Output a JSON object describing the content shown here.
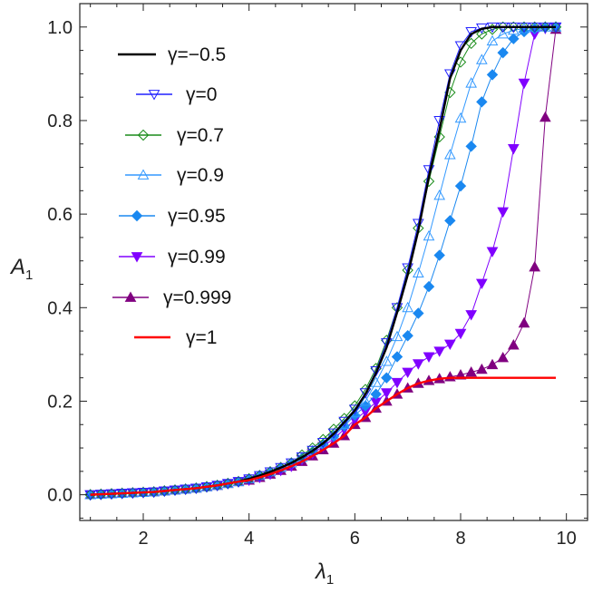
{
  "chart_data": {
    "type": "line",
    "xlabel": "λ",
    "xlabel_sub": "1",
    "ylabel": "A",
    "ylabel_sub": "1",
    "xlim": [
      0.8,
      10.4
    ],
    "ylim": [
      -0.055,
      1.05
    ],
    "xticks": [
      2,
      4,
      6,
      8,
      10
    ],
    "xtick_labels": [
      "2",
      "4",
      "6",
      "8",
      "10"
    ],
    "yticks": [
      0.0,
      0.2,
      0.4,
      0.6,
      0.8,
      1.0
    ],
    "ytick_labels": [
      "0.0",
      "0.2",
      "0.4",
      "0.6",
      "0.8",
      "1.0"
    ],
    "grid": false,
    "legend_placement": "top-left",
    "x": [
      1.0,
      1.2,
      1.4,
      1.6,
      1.8,
      2.0,
      2.2,
      2.4,
      2.6,
      2.8,
      3.0,
      3.2,
      3.4,
      3.6,
      3.8,
      4.0,
      4.2,
      4.4,
      4.6,
      4.8,
      5.0,
      5.2,
      5.4,
      5.6,
      5.8,
      6.0,
      6.2,
      6.4,
      6.6,
      6.8,
      7.0,
      7.2,
      7.4,
      7.6,
      7.8,
      8.0,
      8.2,
      8.4,
      8.6,
      8.8,
      9.0,
      9.2,
      9.4,
      9.6,
      9.8
    ],
    "series": [
      {
        "name": "γ=−0.5",
        "color": "#000000",
        "marker": "none",
        "values": [
          0,
          0.001,
          0.002,
          0.003,
          0.004,
          0.005,
          0.006,
          0.008,
          0.01,
          0.012,
          0.014,
          0.017,
          0.02,
          0.024,
          0.028,
          0.034,
          0.041,
          0.049,
          0.058,
          0.068,
          0.08,
          0.094,
          0.11,
          0.13,
          0.155,
          0.18,
          0.215,
          0.26,
          0.315,
          0.39,
          0.47,
          0.565,
          0.68,
          0.78,
          0.89,
          0.95,
          0.985,
          0.996,
          1,
          1,
          1,
          1,
          1,
          1,
          1
        ]
      },
      {
        "name": "γ=0",
        "color": "#2020ff",
        "marker": "triangle-down-open",
        "values": [
          0,
          0.001,
          0.002,
          0.003,
          0.004,
          0.005,
          0.006,
          0.008,
          0.01,
          0.012,
          0.014,
          0.017,
          0.02,
          0.024,
          0.028,
          0.034,
          0.041,
          0.049,
          0.058,
          0.068,
          0.081,
          0.095,
          0.112,
          0.132,
          0.157,
          0.183,
          0.218,
          0.265,
          0.325,
          0.4,
          0.485,
          0.58,
          0.695,
          0.8,
          0.9,
          0.96,
          0.99,
          0.998,
          1,
          1,
          1,
          1,
          1,
          1,
          1
        ]
      },
      {
        "name": "γ=0.7",
        "color": "#1a8c1a",
        "marker": "diamond-open",
        "values": [
          0,
          0.001,
          0.002,
          0.003,
          0.004,
          0.005,
          0.006,
          0.008,
          0.01,
          0.012,
          0.014,
          0.017,
          0.02,
          0.024,
          0.028,
          0.034,
          0.041,
          0.049,
          0.058,
          0.068,
          0.085,
          0.1,
          0.118,
          0.14,
          0.163,
          0.19,
          0.225,
          0.27,
          0.33,
          0.4,
          0.48,
          0.57,
          0.67,
          0.765,
          0.86,
          0.925,
          0.965,
          0.985,
          0.995,
          1,
          1,
          1,
          1,
          1,
          1
        ]
      },
      {
        "name": "γ=0.9",
        "color": "#3399ff",
        "marker": "triangle-up-open",
        "values": [
          0,
          0.001,
          0.002,
          0.003,
          0.004,
          0.005,
          0.006,
          0.008,
          0.01,
          0.012,
          0.014,
          0.017,
          0.02,
          0.024,
          0.028,
          0.034,
          0.041,
          0.049,
          0.058,
          0.068,
          0.08,
          0.094,
          0.11,
          0.128,
          0.15,
          0.175,
          0.2,
          0.24,
          0.285,
          0.338,
          0.4,
          0.474,
          0.553,
          0.64,
          0.727,
          0.805,
          0.88,
          0.93,
          0.97,
          0.985,
          0.993,
          0.997,
          0.999,
          1,
          1
        ]
      },
      {
        "name": "γ=0.95",
        "color": "#1a88f0",
        "marker": "diamond-filled",
        "values": [
          0,
          0.001,
          0.002,
          0.003,
          0.004,
          0.005,
          0.006,
          0.008,
          0.01,
          0.012,
          0.014,
          0.017,
          0.02,
          0.024,
          0.028,
          0.034,
          0.041,
          0.049,
          0.058,
          0.068,
          0.078,
          0.092,
          0.107,
          0.125,
          0.147,
          0.17,
          0.19,
          0.215,
          0.25,
          0.295,
          0.34,
          0.388,
          0.445,
          0.512,
          0.586,
          0.66,
          0.745,
          0.84,
          0.898,
          0.945,
          0.975,
          0.99,
          0.996,
          0.999,
          1
        ]
      },
      {
        "name": "γ=0.99",
        "color": "#8000ff",
        "marker": "triangle-down-filled",
        "values": [
          0,
          0.001,
          0.002,
          0.003,
          0.004,
          0.005,
          0.006,
          0.008,
          0.01,
          0.012,
          0.014,
          0.017,
          0.02,
          0.024,
          0.028,
          0.031,
          0.037,
          0.044,
          0.052,
          0.061,
          0.075,
          0.088,
          0.103,
          0.12,
          0.14,
          0.16,
          0.178,
          0.198,
          0.218,
          0.24,
          0.262,
          0.28,
          0.295,
          0.307,
          0.322,
          0.345,
          0.385,
          0.452,
          0.52,
          0.605,
          0.74,
          0.88,
          0.985,
          0.997,
          1
        ]
      },
      {
        "name": "γ=0.999",
        "color": "#800080",
        "marker": "triangle-up-filled",
        "values": [
          0,
          0.001,
          0.002,
          0.003,
          0.004,
          0.005,
          0.006,
          0.008,
          0.01,
          0.012,
          0.014,
          0.017,
          0.02,
          0.024,
          0.028,
          0.031,
          0.037,
          0.044,
          0.052,
          0.061,
          0.071,
          0.083,
          0.096,
          0.11,
          0.126,
          0.15,
          0.165,
          0.185,
          0.2,
          0.215,
          0.228,
          0.238,
          0.244,
          0.248,
          0.252,
          0.256,
          0.262,
          0.268,
          0.278,
          0.293,
          0.32,
          0.367,
          0.487,
          0.807,
          0.995
        ]
      },
      {
        "name": "γ=1",
        "color": "#ff0000",
        "marker": "none",
        "values": [
          0,
          0.001,
          0.002,
          0.003,
          0.004,
          0.005,
          0.006,
          0.008,
          0.01,
          0.012,
          0.014,
          0.017,
          0.02,
          0.024,
          0.028,
          0.031,
          0.037,
          0.044,
          0.052,
          0.061,
          0.071,
          0.083,
          0.096,
          0.11,
          0.126,
          0.15,
          0.165,
          0.185,
          0.2,
          0.215,
          0.228,
          0.238,
          0.244,
          0.248,
          0.25,
          0.25,
          0.25,
          0.25,
          0.25,
          0.25,
          0.25,
          0.25,
          0.25,
          0.25,
          0.25
        ]
      }
    ]
  }
}
